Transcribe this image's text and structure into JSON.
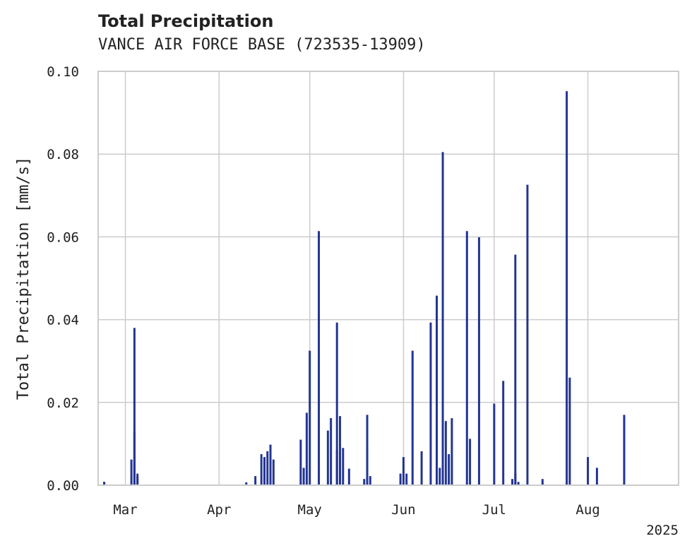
{
  "chart_data": {
    "type": "bar",
    "title": "Total Precipitation",
    "subtitle": "VANCE AIR FORCE BASE (723535-13909)",
    "ylabel": "Total Precipitation [mm/s]",
    "xlabel": "",
    "ylim": [
      0,
      0.1
    ],
    "yticks": [
      "0.00",
      "0.02",
      "0.04",
      "0.06",
      "0.08",
      "0.10"
    ],
    "xlim": [
      "2025-02-20",
      "2025-08-31"
    ],
    "xticks": [
      {
        "date": "2025-03-01",
        "label": "Mar"
      },
      {
        "date": "2025-04-01",
        "label": "Apr"
      },
      {
        "date": "2025-05-01",
        "label": "May"
      },
      {
        "date": "2025-06-01",
        "label": "Jun"
      },
      {
        "date": "2025-07-01",
        "label": "Jul"
      },
      {
        "date": "2025-08-01",
        "label": "Aug"
      }
    ],
    "year_label": "2025",
    "grid": true,
    "bar_color": "#233592",
    "x": [
      "2025-02-22",
      "2025-02-22",
      "2025-03-03",
      "2025-03-04",
      "2025-03-04",
      "2025-03-05",
      "2025-03-05",
      "2025-04-10",
      "2025-04-13",
      "2025-04-15",
      "2025-04-16",
      "2025-04-17",
      "2025-04-18",
      "2025-04-19",
      "2025-04-28",
      "2025-04-29",
      "2025-04-30",
      "2025-05-01",
      "2025-05-04",
      "2025-05-07",
      "2025-05-08",
      "2025-05-10",
      "2025-05-10",
      "2025-05-11",
      "2025-05-12",
      "2025-05-14",
      "2025-05-19",
      "2025-05-20",
      "2025-05-20",
      "2025-05-21",
      "2025-05-31",
      "2025-06-01",
      "2025-06-02",
      "2025-06-04",
      "2025-06-07",
      "2025-06-10",
      "2025-06-12",
      "2025-06-13",
      "2025-06-14",
      "2025-06-15",
      "2025-06-16",
      "2025-06-17",
      "2025-06-22",
      "2025-06-23",
      "2025-06-26",
      "2025-07-01",
      "2025-07-04",
      "2025-07-07",
      "2025-07-08",
      "2025-07-08",
      "2025-07-09",
      "2025-07-12",
      "2025-07-17",
      "2025-07-25",
      "2025-07-26",
      "2025-08-01",
      "2025-08-04",
      "2025-08-13"
    ],
    "values": [
      0.0008,
      0.0008,
      0.0062,
      0.038,
      0.013,
      0.0028,
      0.0022,
      0.0007,
      0.0022,
      0.0075,
      0.0068,
      0.0082,
      0.0098,
      0.0062,
      0.011,
      0.0042,
      0.0175,
      0.0325,
      0.0614,
      0.0132,
      0.0162,
      0.0085,
      0.0393,
      0.0167,
      0.009,
      0.004,
      0.0015,
      0.017,
      0.0085,
      0.0022,
      0.0028,
      0.0068,
      0.0028,
      0.0325,
      0.0082,
      0.0393,
      0.0458,
      0.0042,
      0.0805,
      0.0155,
      0.0075,
      0.0162,
      0.0614,
      0.0112,
      0.0599,
      0.0197,
      0.0252,
      0.0015,
      0.0028,
      0.0557,
      0.0008,
      0.0726,
      0.0015,
      0.0952,
      0.026,
      0.0068,
      0.0042,
      0.017
    ]
  }
}
